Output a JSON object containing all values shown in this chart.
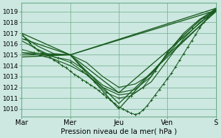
{
  "xlabel": "Pression niveau de la mer( hPa )",
  "bg_color": "#cce8e0",
  "grid_color": "#6aaa88",
  "line_color": "#1a5c20",
  "ylim": [
    1009.3,
    1019.8
  ],
  "yticks": [
    1010,
    1011,
    1012,
    1013,
    1014,
    1015,
    1016,
    1017,
    1018,
    1019
  ],
  "xlim": [
    0,
    96
  ],
  "xtick_positions": [
    0,
    24,
    48,
    72,
    96
  ],
  "xtick_labels": [
    "Mar",
    "Mer",
    "Jeu",
    "Ven",
    "S"
  ],
  "lines": [
    {
      "x": [
        0,
        2,
        4,
        6,
        8,
        10,
        12,
        14,
        16,
        18,
        20,
        22,
        24,
        26,
        28,
        30,
        32,
        34,
        36,
        38,
        40,
        42,
        44,
        46,
        48,
        50,
        52,
        54,
        56,
        58,
        60,
        62,
        64,
        66,
        68,
        70,
        72,
        74,
        76,
        78,
        80,
        82,
        84,
        86,
        88,
        90,
        92,
        94,
        96
      ],
      "y": [
        1017.0,
        1016.5,
        1016.1,
        1015.7,
        1015.4,
        1015.2,
        1015.0,
        1014.8,
        1014.5,
        1014.3,
        1014.0,
        1013.8,
        1013.5,
        1013.2,
        1013.0,
        1012.7,
        1012.5,
        1012.2,
        1012.0,
        1011.7,
        1011.4,
        1011.1,
        1010.8,
        1010.5,
        1010.2,
        1010.0,
        1009.8,
        1009.6,
        1009.5,
        1009.6,
        1009.9,
        1010.3,
        1010.8,
        1011.3,
        1011.8,
        1012.3,
        1012.8,
        1013.3,
        1013.9,
        1014.5,
        1015.1,
        1015.7,
        1016.3,
        1016.9,
        1017.5,
        1018.0,
        1018.5,
        1019.0,
        1019.2
      ],
      "marker": "+",
      "lw": 0.8
    },
    {
      "x": [
        0,
        24,
        96
      ],
      "y": [
        1017.0,
        1015.0,
        1019.3
      ],
      "marker": null,
      "lw": 1.0
    },
    {
      "x": [
        0,
        24,
        96
      ],
      "y": [
        1016.5,
        1015.0,
        1019.1
      ],
      "marker": null,
      "lw": 1.0
    },
    {
      "x": [
        0,
        24,
        48,
        96
      ],
      "y": [
        1015.2,
        1015.0,
        1011.5,
        1019.2
      ],
      "marker": null,
      "lw": 1.0
    },
    {
      "x": [
        0,
        24,
        48,
        96
      ],
      "y": [
        1015.0,
        1015.0,
        1010.5,
        1019.1
      ],
      "marker": null,
      "lw": 1.0
    },
    {
      "x": [
        0,
        24,
        48,
        72,
        96
      ],
      "y": [
        1014.8,
        1015.0,
        1010.0,
        1015.0,
        1019.0
      ],
      "marker": null,
      "lw": 1.0
    },
    {
      "x": [
        0,
        8,
        16,
        24,
        32,
        40,
        48,
        56,
        64,
        72,
        80,
        88,
        96
      ],
      "y": [
        1016.8,
        1015.8,
        1015.1,
        1015.0,
        1014.3,
        1013.0,
        1012.0,
        1012.3,
        1013.2,
        1015.0,
        1016.8,
        1018.2,
        1019.1
      ],
      "marker": null,
      "lw": 0.9
    },
    {
      "x": [
        0,
        8,
        16,
        24,
        32,
        40,
        48,
        56,
        64,
        72,
        80,
        88,
        96
      ],
      "y": [
        1016.3,
        1015.5,
        1014.8,
        1014.5,
        1013.5,
        1012.2,
        1011.5,
        1011.8,
        1013.0,
        1015.2,
        1017.0,
        1018.3,
        1019.2
      ],
      "marker": null,
      "lw": 0.9
    },
    {
      "x": [
        0,
        6,
        12,
        18,
        24,
        30,
        36,
        42,
        48,
        54,
        60,
        66,
        72,
        78,
        84,
        90,
        96
      ],
      "y": [
        1015.5,
        1015.2,
        1015.0,
        1014.7,
        1014.3,
        1013.5,
        1012.5,
        1011.5,
        1011.0,
        1011.2,
        1012.0,
        1013.5,
        1015.2,
        1016.5,
        1017.5,
        1018.5,
        1019.3
      ],
      "marker": "+",
      "lw": 0.8
    },
    {
      "x": [
        0,
        8,
        16,
        24,
        32,
        40,
        48,
        56,
        64,
        72,
        80,
        88,
        96
      ],
      "y": [
        1015.2,
        1015.0,
        1014.6,
        1014.0,
        1013.2,
        1012.0,
        1011.3,
        1011.5,
        1012.5,
        1014.5,
        1016.5,
        1018.0,
        1019.1
      ],
      "marker": null,
      "lw": 0.9
    }
  ]
}
